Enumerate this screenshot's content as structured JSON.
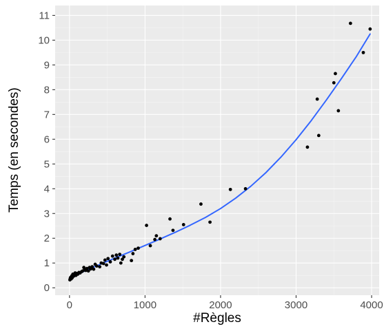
{
  "chart_data": {
    "type": "scatter",
    "title": "",
    "xlabel": "#Règles",
    "ylabel": "Temps (en secondes)",
    "xlim": [
      -190,
      4100
    ],
    "ylim": [
      -0.3,
      11.4
    ],
    "x_ticks": [
      0,
      1000,
      2000,
      3000,
      4000
    ],
    "y_ticks": [
      0,
      1,
      2,
      3,
      4,
      5,
      6,
      7,
      8,
      9,
      10,
      11
    ],
    "grid": true,
    "legend": "none",
    "colors": {
      "panel_background": "#ebebeb",
      "grid_major": "#ffffff",
      "grid_minor": "#f5f5f5",
      "points": "#000000",
      "fit_line": "#3366ff"
    },
    "series": [
      {
        "values": [
          [
            5,
            0.32
          ],
          [
            10,
            0.38
          ],
          [
            15,
            0.42
          ],
          [
            22,
            0.36
          ],
          [
            30,
            0.48
          ],
          [
            35,
            0.4
          ],
          [
            45,
            0.55
          ],
          [
            55,
            0.47
          ],
          [
            65,
            0.52
          ],
          [
            75,
            0.6
          ],
          [
            85,
            0.5
          ],
          [
            100,
            0.58
          ],
          [
            110,
            0.55
          ],
          [
            125,
            0.62
          ],
          [
            140,
            0.6
          ],
          [
            160,
            0.65
          ],
          [
            175,
            0.68
          ],
          [
            190,
            0.82
          ],
          [
            200,
            0.72
          ],
          [
            215,
            0.7
          ],
          [
            230,
            0.78
          ],
          [
            250,
            0.68
          ],
          [
            265,
            0.82
          ],
          [
            280,
            0.76
          ],
          [
            300,
            0.85
          ],
          [
            320,
            0.75
          ],
          [
            340,
            0.95
          ],
          [
            360,
            0.88
          ],
          [
            400,
            0.85
          ],
          [
            420,
            1.0
          ],
          [
            450,
            0.98
          ],
          [
            470,
            1.12
          ],
          [
            490,
            0.92
          ],
          [
            510,
            1.18
          ],
          [
            540,
            1.05
          ],
          [
            570,
            1.28
          ],
          [
            600,
            1.15
          ],
          [
            620,
            1.32
          ],
          [
            640,
            1.2
          ],
          [
            665,
            1.35
          ],
          [
            680,
            1.0
          ],
          [
            700,
            1.15
          ],
          [
            720,
            1.25
          ],
          [
            820,
            1.1
          ],
          [
            840,
            1.38
          ],
          [
            870,
            1.55
          ],
          [
            910,
            1.6
          ],
          [
            1020,
            2.52
          ],
          [
            1070,
            1.7
          ],
          [
            1130,
            1.95
          ],
          [
            1150,
            2.1
          ],
          [
            1200,
            1.98
          ],
          [
            1330,
            2.78
          ],
          [
            1370,
            2.32
          ],
          [
            1510,
            2.55
          ],
          [
            1740,
            3.38
          ],
          [
            1860,
            2.65
          ],
          [
            2130,
            3.97
          ],
          [
            2330,
            4.0
          ],
          [
            3150,
            5.68
          ],
          [
            3280,
            7.62
          ],
          [
            3300,
            6.15
          ],
          [
            3500,
            8.28
          ],
          [
            3520,
            8.65
          ],
          [
            3560,
            7.15
          ],
          [
            3720,
            10.68
          ],
          [
            3890,
            9.5
          ],
          [
            3980,
            10.45
          ]
        ]
      }
    ],
    "fit": {
      "method": "loess",
      "x": [
        0,
        200,
        400,
        600,
        800,
        1000,
        1200,
        1400,
        1600,
        1800,
        2000,
        2200,
        2400,
        2600,
        2800,
        3000,
        3200,
        3400,
        3600,
        3800,
        3980
      ],
      "y": [
        0.34,
        0.68,
        0.94,
        1.2,
        1.45,
        1.71,
        1.97,
        2.24,
        2.53,
        2.84,
        3.2,
        3.62,
        4.1,
        4.65,
        5.28,
        5.98,
        6.75,
        7.58,
        8.45,
        9.35,
        10.25
      ]
    }
  }
}
